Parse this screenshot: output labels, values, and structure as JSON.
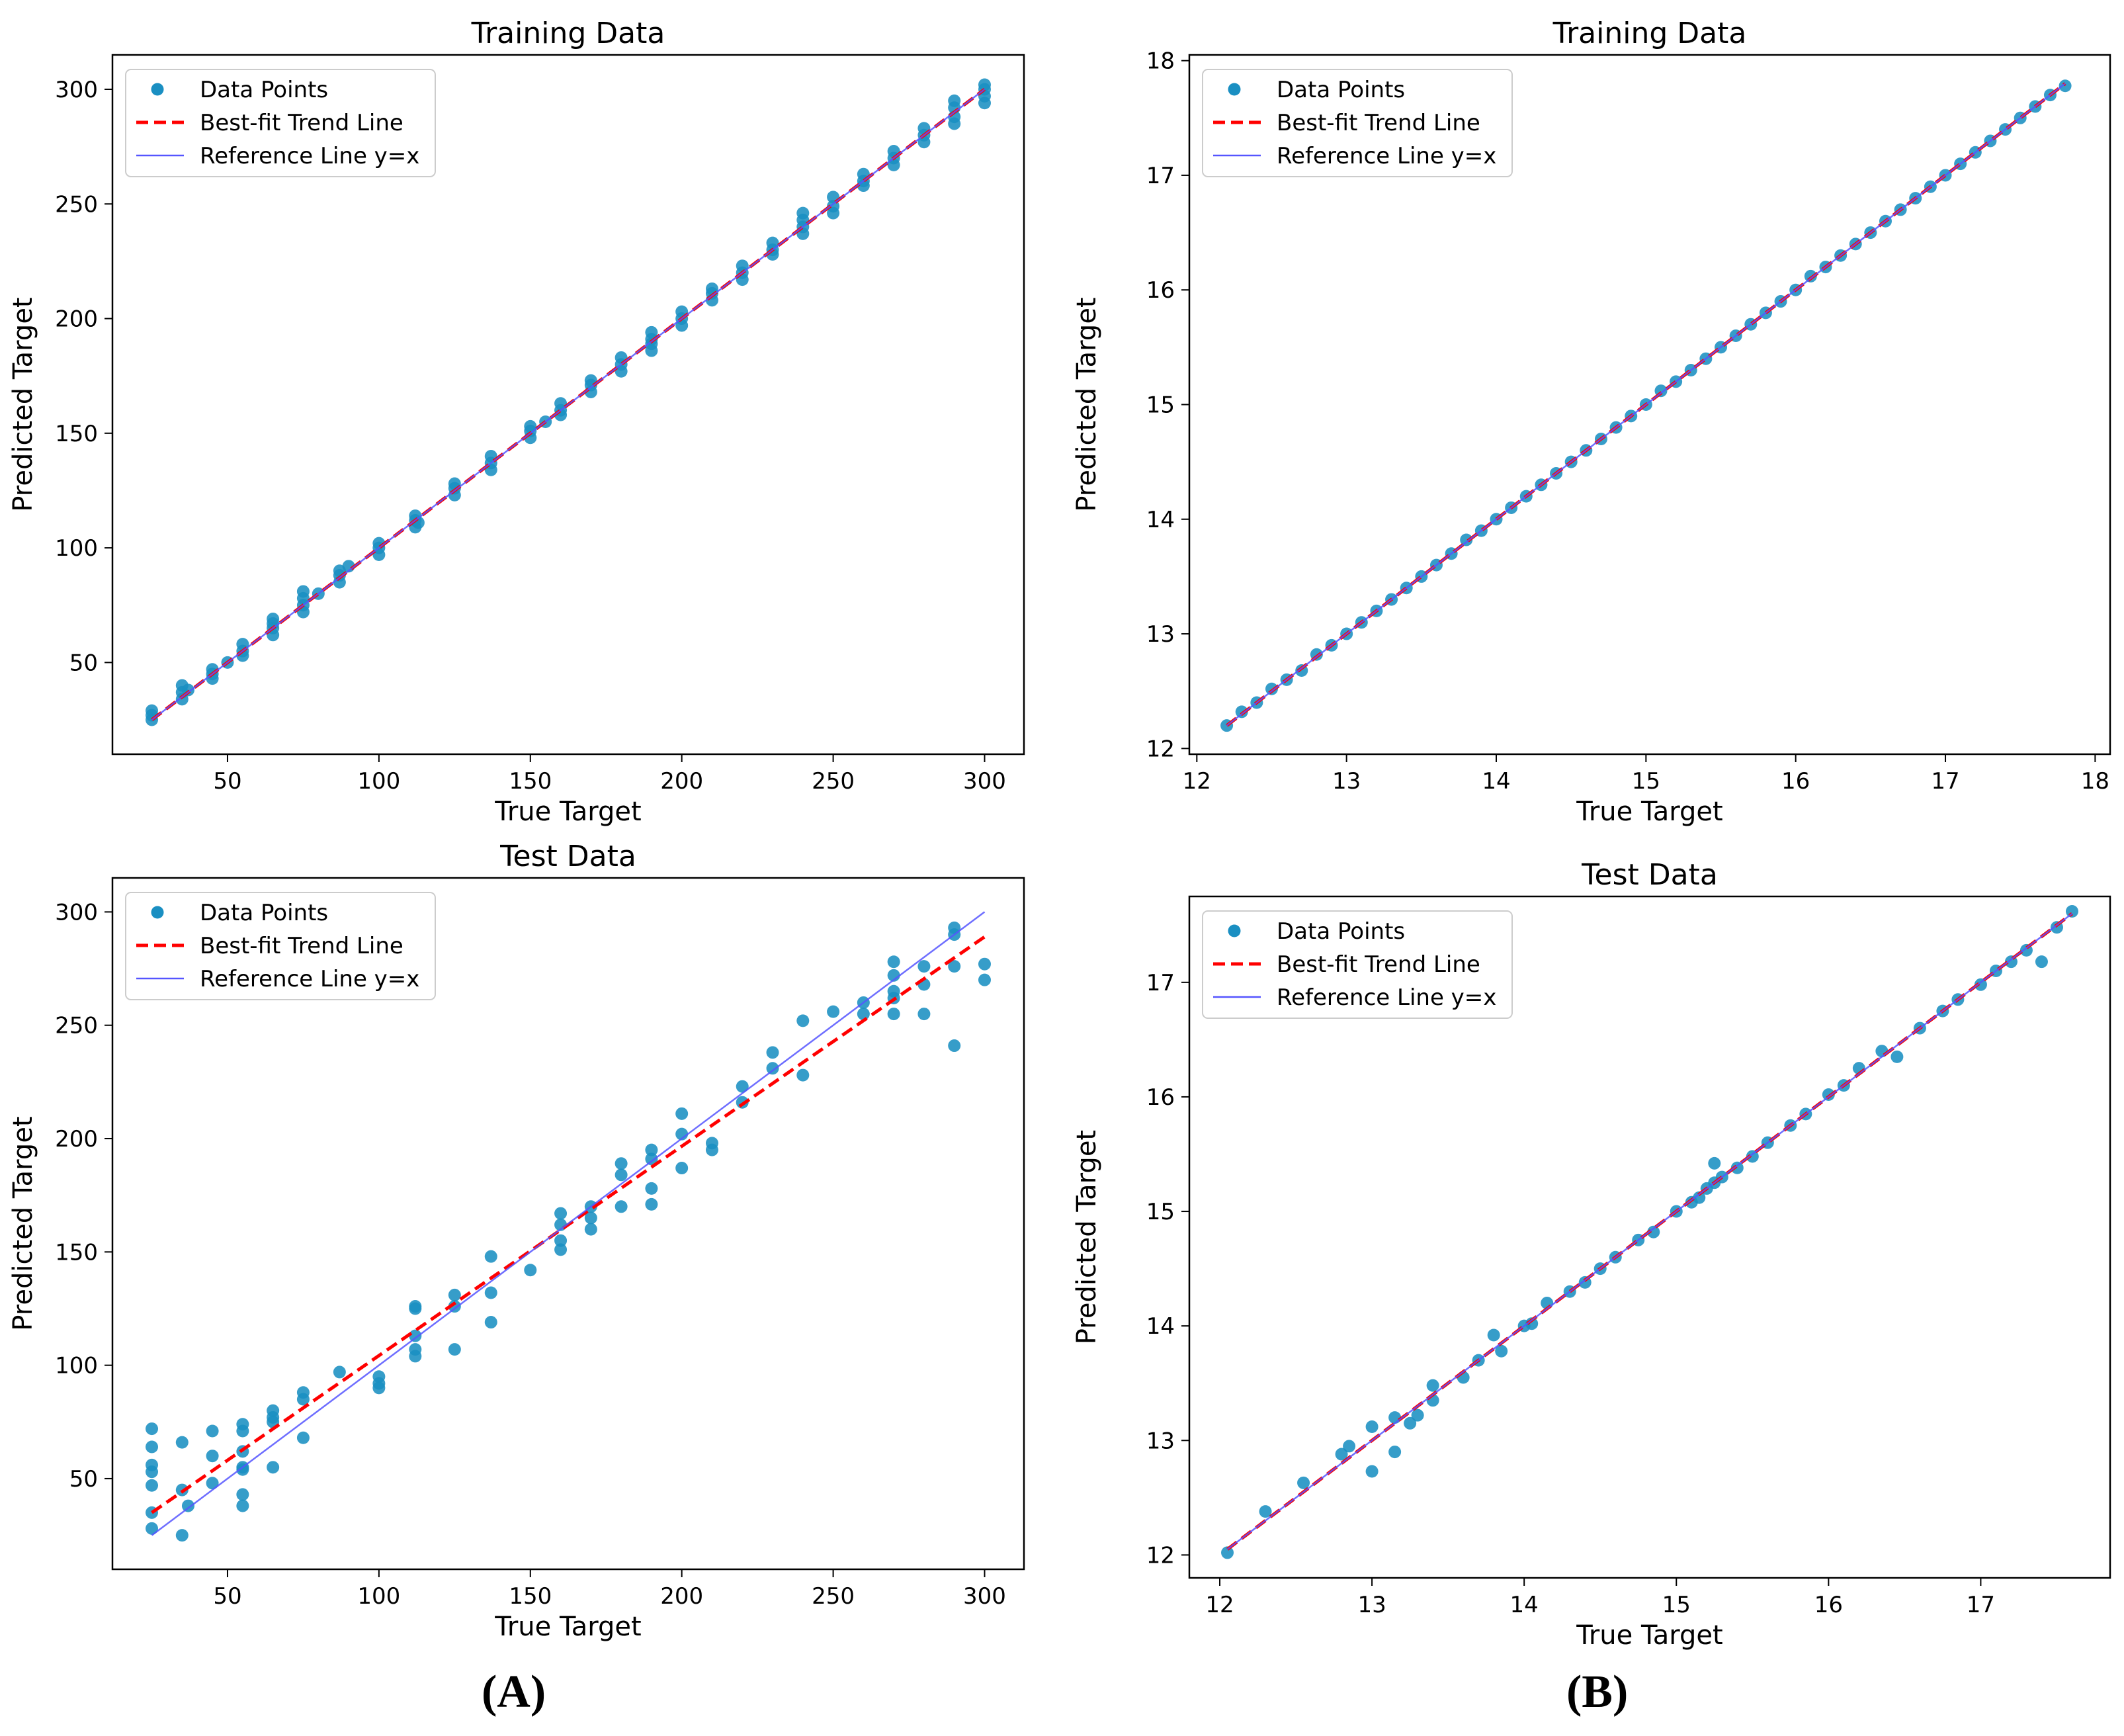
{
  "colors": {
    "points": "#1a8fc2",
    "trend": "#ff0000",
    "reference": "#5555ff",
    "axis": "#000000"
  },
  "chart_data": [
    {
      "id": "A-train",
      "type": "scatter",
      "title": "Training Data",
      "xlabel": "True Target",
      "ylabel": "Predicted Target",
      "xlim": [
        12,
        313
      ],
      "ylim": [
        10,
        315
      ],
      "xticks": [
        50,
        100,
        150,
        200,
        250,
        300
      ],
      "yticks": [
        50,
        100,
        150,
        200,
        250,
        300
      ],
      "xtick_labels": [
        "50",
        "100",
        "150",
        "200",
        "250",
        "300"
      ],
      "ytick_labels": [
        "50",
        "100",
        "150",
        "200",
        "250",
        "300"
      ],
      "legend": {
        "position": "top-left",
        "entries": [
          "Data Points",
          "Best-fit Trend Line",
          "Reference Line y=x"
        ]
      },
      "trend": [
        [
          25,
          25
        ],
        [
          300,
          300
        ]
      ],
      "reference": [
        [
          25,
          25
        ],
        [
          300,
          300
        ]
      ],
      "x": [
        25,
        25,
        25,
        35,
        35,
        35,
        37,
        45,
        45,
        45,
        50,
        55,
        55,
        55,
        65,
        65,
        65,
        65,
        75,
        75,
        75,
        75,
        80,
        87,
        87,
        87,
        90,
        100,
        100,
        100,
        112,
        112,
        112,
        113,
        125,
        125,
        125,
        137,
        137,
        137,
        150,
        150,
        150,
        155,
        160,
        160,
        160,
        170,
        170,
        170,
        180,
        180,
        180,
        190,
        190,
        190,
        190,
        200,
        200,
        200,
        210,
        210,
        210,
        220,
        220,
        220,
        230,
        230,
        230,
        240,
        240,
        240,
        240,
        250,
        250,
        250,
        260,
        260,
        260,
        270,
        270,
        270,
        280,
        280,
        280,
        290,
        290,
        290,
        290,
        300,
        300,
        300,
        300
      ],
      "y": [
        25,
        27,
        29,
        34,
        37,
        40,
        38,
        43,
        45,
        47,
        50,
        53,
        55,
        58,
        62,
        65,
        67,
        69,
        72,
        75,
        78,
        81,
        80,
        85,
        88,
        90,
        92,
        97,
        100,
        102,
        109,
        112,
        114,
        111,
        123,
        126,
        128,
        134,
        137,
        140,
        148,
        151,
        153,
        155,
        158,
        160,
        163,
        168,
        171,
        173,
        177,
        180,
        183,
        186,
        189,
        191,
        194,
        197,
        200,
        203,
        208,
        211,
        213,
        217,
        220,
        223,
        228,
        230,
        233,
        237,
        240,
        243,
        246,
        246,
        249,
        253,
        258,
        260,
        263,
        267,
        270,
        273,
        277,
        280,
        283,
        285,
        288,
        292,
        295,
        294,
        297,
        300,
        302
      ]
    },
    {
      "id": "B-train",
      "type": "scatter",
      "title": "Training Data",
      "xlabel": "True Target",
      "ylabel": "Predicted Target",
      "xlim": [
        11.95,
        18.1
      ],
      "ylim": [
        11.95,
        18.05
      ],
      "xticks": [
        12,
        13,
        14,
        15,
        16,
        17,
        18
      ],
      "yticks": [
        12,
        13,
        14,
        15,
        16,
        17,
        18
      ],
      "xtick_labels": [
        "12",
        "13",
        "14",
        "15",
        "16",
        "17",
        "18"
      ],
      "ytick_labels": [
        "12",
        "13",
        "14",
        "15",
        "16",
        "17",
        "18"
      ],
      "legend": {
        "position": "top-left",
        "entries": [
          "Data Points",
          "Best-fit Trend Line",
          "Reference Line y=x"
        ]
      },
      "trend": [
        [
          12.2,
          12.2
        ],
        [
          17.8,
          17.8
        ]
      ],
      "reference": [
        [
          12.2,
          12.2
        ],
        [
          17.8,
          17.8
        ]
      ],
      "x": [
        12.2,
        12.3,
        12.4,
        12.5,
        12.6,
        12.7,
        12.8,
        12.9,
        13.0,
        13.1,
        13.2,
        13.3,
        13.4,
        13.5,
        13.6,
        13.7,
        13.8,
        13.9,
        14.0,
        14.1,
        14.2,
        14.3,
        14.4,
        14.5,
        14.6,
        14.7,
        14.8,
        14.9,
        15.0,
        15.1,
        15.2,
        15.3,
        15.4,
        15.5,
        15.6,
        15.7,
        15.8,
        15.9,
        16.0,
        16.1,
        16.2,
        16.3,
        16.4,
        16.5,
        16.6,
        16.7,
        16.8,
        16.9,
        17.0,
        17.1,
        17.2,
        17.3,
        17.4,
        17.5,
        17.6,
        17.7,
        17.8
      ],
      "y": [
        12.2,
        12.32,
        12.4,
        12.52,
        12.6,
        12.68,
        12.82,
        12.9,
        13.0,
        13.1,
        13.2,
        13.3,
        13.4,
        13.5,
        13.6,
        13.7,
        13.82,
        13.9,
        14.0,
        14.1,
        14.2,
        14.3,
        14.4,
        14.5,
        14.6,
        14.7,
        14.8,
        14.9,
        15.0,
        15.12,
        15.2,
        15.3,
        15.4,
        15.5,
        15.6,
        15.7,
        15.8,
        15.9,
        16.0,
        16.12,
        16.2,
        16.3,
        16.4,
        16.5,
        16.6,
        16.7,
        16.8,
        16.9,
        17.0,
        17.1,
        17.2,
        17.3,
        17.4,
        17.5,
        17.6,
        17.7,
        17.78
      ]
    },
    {
      "id": "A-test",
      "type": "scatter",
      "title": "Test Data",
      "xlabel": "True Target",
      "ylabel": "Predicted Target",
      "xlim": [
        12,
        313
      ],
      "ylim": [
        10,
        315
      ],
      "xticks": [
        50,
        100,
        150,
        200,
        250,
        300
      ],
      "yticks": [
        50,
        100,
        150,
        200,
        250,
        300
      ],
      "xtick_labels": [
        "50",
        "100",
        "150",
        "200",
        "250",
        "300"
      ],
      "ytick_labels": [
        "50",
        "100",
        "150",
        "200",
        "250",
        "300"
      ],
      "legend": {
        "position": "top-left",
        "entries": [
          "Data Points",
          "Best-fit Trend Line",
          "Reference Line y=x"
        ]
      },
      "trend": [
        [
          25,
          35
        ],
        [
          300,
          289
        ]
      ],
      "reference": [
        [
          25,
          25
        ],
        [
          300,
          300
        ]
      ],
      "x": [
        25,
        25,
        25,
        25,
        25,
        25,
        25,
        35,
        35,
        35,
        37,
        45,
        45,
        45,
        55,
        55,
        55,
        55,
        55,
        55,
        55,
        65,
        65,
        65,
        65,
        75,
        75,
        75,
        87,
        100,
        100,
        100,
        112,
        112,
        112,
        112,
        112,
        125,
        125,
        125,
        137,
        137,
        137,
        150,
        160,
        160,
        160,
        160,
        170,
        170,
        170,
        180,
        180,
        180,
        190,
        190,
        190,
        190,
        200,
        200,
        200,
        210,
        210,
        220,
        220,
        230,
        230,
        240,
        240,
        250,
        260,
        260,
        270,
        270,
        270,
        270,
        270,
        280,
        280,
        280,
        290,
        290,
        290,
        290,
        300,
        300
      ],
      "y": [
        72,
        64,
        56,
        53,
        47,
        35,
        28,
        66,
        45,
        25,
        38,
        71,
        60,
        48,
        74,
        71,
        62,
        55,
        54,
        43,
        38,
        80,
        77,
        75,
        55,
        88,
        85,
        68,
        97,
        95,
        92,
        90,
        126,
        125,
        113,
        107,
        104,
        131,
        126,
        107,
        148,
        132,
        119,
        142,
        167,
        162,
        155,
        151,
        170,
        165,
        160,
        189,
        184,
        170,
        195,
        191,
        178,
        171,
        211,
        202,
        187,
        198,
        195,
        223,
        216,
        238,
        231,
        252,
        228,
        256,
        260,
        255,
        278,
        272,
        265,
        262,
        255,
        276,
        268,
        255,
        293,
        290,
        276,
        241,
        277,
        270
      ]
    },
    {
      "id": "B-test",
      "type": "scatter",
      "title": "Test Data",
      "xlabel": "True Target",
      "ylabel": "Predicted Target",
      "xlim": [
        11.8,
        17.85
      ],
      "ylim": [
        11.8,
        17.75
      ],
      "xticks": [
        12,
        13,
        14,
        15,
        16,
        17
      ],
      "yticks": [
        12,
        13,
        14,
        15,
        16,
        17
      ],
      "xtick_labels": [
        "12",
        "13",
        "14",
        "15",
        "16",
        "17"
      ],
      "ytick_labels": [
        "12",
        "13",
        "14",
        "15",
        "16",
        "17"
      ],
      "legend": {
        "position": "top-left",
        "entries": [
          "Data Points",
          "Best-fit Trend Line",
          "Reference Line y=x"
        ]
      },
      "trend": [
        [
          12.05,
          12.05
        ],
        [
          17.6,
          17.6
        ]
      ],
      "reference": [
        [
          12.05,
          12.05
        ],
        [
          17.6,
          17.6
        ]
      ],
      "x": [
        12.05,
        12.3,
        12.55,
        12.8,
        12.85,
        13.0,
        13.0,
        13.15,
        13.15,
        13.25,
        13.3,
        13.4,
        13.4,
        13.6,
        13.7,
        13.8,
        13.85,
        14.0,
        14.05,
        14.15,
        14.3,
        14.4,
        14.5,
        14.6,
        14.75,
        14.85,
        15.0,
        15.1,
        15.15,
        15.2,
        15.25,
        15.25,
        15.3,
        15.4,
        15.5,
        15.6,
        15.75,
        15.85,
        16.0,
        16.1,
        16.2,
        16.35,
        16.45,
        16.6,
        16.75,
        16.85,
        17.0,
        17.1,
        17.2,
        17.3,
        17.4,
        17.5,
        17.6
      ],
      "y": [
        12.02,
        12.38,
        12.63,
        12.88,
        12.95,
        12.73,
        13.12,
        12.9,
        13.2,
        13.15,
        13.22,
        13.35,
        13.48,
        13.55,
        13.7,
        13.92,
        13.78,
        14.0,
        14.02,
        14.2,
        14.3,
        14.38,
        14.5,
        14.6,
        14.75,
        14.82,
        15.0,
        15.08,
        15.12,
        15.2,
        15.42,
        15.25,
        15.3,
        15.38,
        15.48,
        15.6,
        15.75,
        15.85,
        16.02,
        16.1,
        16.25,
        16.4,
        16.35,
        16.6,
        16.75,
        16.85,
        16.98,
        17.1,
        17.18,
        17.28,
        17.18,
        17.48,
        17.62
      ]
    }
  ],
  "panel_labels": [
    "(A)",
    "(B)"
  ]
}
